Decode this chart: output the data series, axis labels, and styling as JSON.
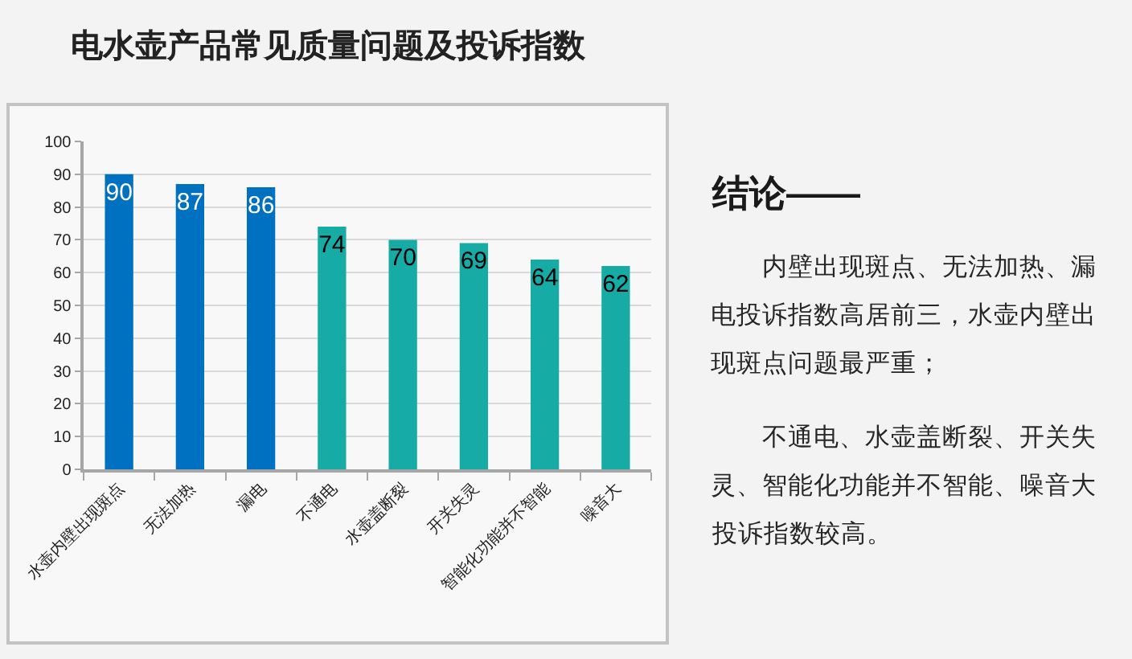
{
  "chart_data": [
    {
      "type": "bar",
      "title": "电水壶产品常见质量问题及投诉指数",
      "categories": [
        "水壶内壁出现斑点",
        "无法加热",
        "漏电",
        "不通电",
        "水壶盖断裂",
        "开关失灵",
        "智能化功能并不智能",
        "噪音大"
      ],
      "values": [
        90,
        87,
        86,
        74,
        70,
        69,
        64,
        62
      ],
      "colors": [
        "#0070c0",
        "#0070c0",
        "#0070c0",
        "#17aba5",
        "#17aba5",
        "#17aba5",
        "#17aba5",
        "#17aba5"
      ],
      "ylim": [
        0,
        100
      ],
      "yticks": [
        0,
        10,
        20,
        30,
        40,
        50,
        60,
        70,
        80,
        90,
        100
      ],
      "grid": "y",
      "data_labels": true
    },
    {
      "type": "other",
      "title": "结论——",
      "annotations": [
        "内壁出现斑点、无法加热、漏电投诉指数高居前三，水壶内壁出现斑点问题最严重；",
        "不通电、水壶盖断裂、开关失灵、智能化功能并不智能、噪音大投诉指数较高。"
      ]
    }
  ]
}
